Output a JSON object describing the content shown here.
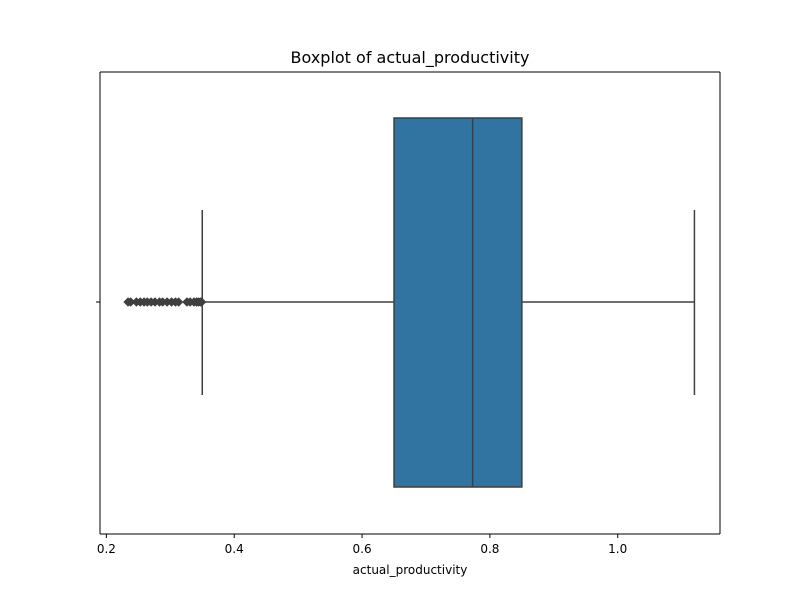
{
  "chart_data": {
    "type": "box",
    "title": "Boxplot of actual_productivity",
    "xlabel": "actual_productivity",
    "ylabel": "",
    "xlim": [
      0.19,
      1.16
    ],
    "xticks": [
      0.2,
      0.4,
      0.6,
      0.8,
      1.0
    ],
    "xtick_labels": [
      "0.2",
      "0.4",
      "0.6",
      "0.8",
      "1.0"
    ],
    "grid": false,
    "box": {
      "whisker_low": 0.35,
      "q1": 0.65,
      "median": 0.773,
      "q3": 0.85,
      "whisker_high": 1.12,
      "fill_color": "#3274a1",
      "line_color": "#3f3f3f"
    },
    "outliers": [
      0.234,
      0.238,
      0.247,
      0.253,
      0.259,
      0.264,
      0.27,
      0.276,
      0.283,
      0.288,
      0.295,
      0.302,
      0.308,
      0.313,
      0.326,
      0.331,
      0.337,
      0.341,
      0.344,
      0.347,
      0.349
    ]
  }
}
